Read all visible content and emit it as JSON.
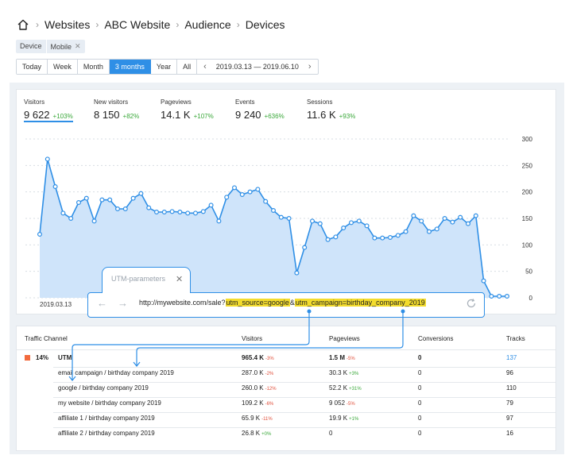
{
  "breadcrumb": {
    "items": [
      "Websites",
      "ABC Website",
      "Audience",
      "Devices"
    ]
  },
  "filter": {
    "key": "Device",
    "value": "Mobile"
  },
  "periods": {
    "items": [
      "Today",
      "Week",
      "Month",
      "3 months",
      "Year",
      "All"
    ],
    "active": "3 months",
    "range": "2019.03.13 — 2019.06.10"
  },
  "metrics": [
    {
      "name": "Visitors",
      "value": "9 622",
      "change": "+103%"
    },
    {
      "name": "New visitors",
      "value": "8 150",
      "change": "+82%"
    },
    {
      "name": "Pageviews",
      "value": "14.1 K",
      "change": "+107%"
    },
    {
      "name": "Events",
      "value": "9 240",
      "change": "+636%"
    },
    {
      "name": "Sessions",
      "value": "11.6 K",
      "change": "+93%"
    }
  ],
  "chart_data": {
    "type": "area",
    "title": "",
    "xlabel": "",
    "ylabel": "",
    "x_visible_labels": [
      "2019.03.13"
    ],
    "y_ticks": [
      0,
      50,
      100,
      150,
      200,
      250,
      300
    ],
    "ylim": [
      0,
      300
    ],
    "grid": true,
    "series": [
      {
        "values": [
          120,
          262,
          210,
          160,
          150,
          180,
          188,
          145,
          185,
          185,
          168,
          168,
          188,
          197,
          170,
          162,
          162,
          163,
          162,
          160,
          160,
          163,
          175,
          145,
          190,
          208,
          195,
          200,
          205,
          182,
          165,
          152,
          150,
          47,
          95,
          145,
          140,
          110,
          115,
          132,
          142,
          145,
          136,
          113,
          113,
          114,
          118,
          125,
          155,
          145,
          125,
          130,
          150,
          143,
          152,
          140,
          155,
          32,
          3,
          3,
          3
        ]
      }
    ]
  },
  "colors": {
    "accent": "#2f8fe6",
    "area_fill": "#cfe4fa",
    "positive": "#3aa83a",
    "negative": "#e0503c",
    "highlight": "#f3dc2d",
    "channel_marker": "#f26a3d"
  },
  "utm": {
    "title": "UTM-parameters",
    "url_prefix": "http://mywebsite.com/sale?",
    "param1": "utm_source=google",
    "amp": "&",
    "param2": "utm_campaign=birthday_company_2019",
    "icons": [
      "back-arrow-icon",
      "forward-arrow-icon",
      "reload-icon",
      "close-icon"
    ]
  },
  "table": {
    "headers": [
      "Traffic Channel",
      "Visitors",
      "Pageviews",
      "Conversions",
      "Tracks"
    ],
    "group": {
      "share": "14%",
      "name": "UTM",
      "visitors": "965.4 K",
      "visitors_chg": "-3%",
      "pageviews": "1.5 M",
      "pageviews_chg": "-5%",
      "conversions": "0",
      "tracks": "137"
    },
    "rows": [
      {
        "name": "email campaign / birthday company 2019",
        "visitors": "287.0 K",
        "visitors_chg": "-2%",
        "pageviews": "30.3 K",
        "pageviews_chg": "+3%",
        "conversions": "0",
        "tracks": "96"
      },
      {
        "name": "google / birthday company 2019",
        "visitors": "260.0 K",
        "visitors_chg": "-12%",
        "pageviews": "52.2 K",
        "pageviews_chg": "+31%",
        "conversions": "0",
        "tracks": "110"
      },
      {
        "name": "my website / birthday company 2019",
        "visitors": "109.2 K",
        "visitors_chg": "-6%",
        "pageviews": "9 052",
        "pageviews_chg": "-5%",
        "conversions": "0",
        "tracks": "79"
      },
      {
        "name": "affiliate 1 / birthday company 2019",
        "visitors": "65.9 K",
        "visitors_chg": "-11%",
        "pageviews": "19.9 K",
        "pageviews_chg": "+1%",
        "conversions": "0",
        "tracks": "97"
      },
      {
        "name": "affiliate 2 / birthday company 2019",
        "visitors": "26.8 K",
        "visitors_chg": "+0%",
        "pageviews": "0",
        "pageviews_chg": "",
        "conversions": "0",
        "tracks": "16"
      }
    ]
  }
}
